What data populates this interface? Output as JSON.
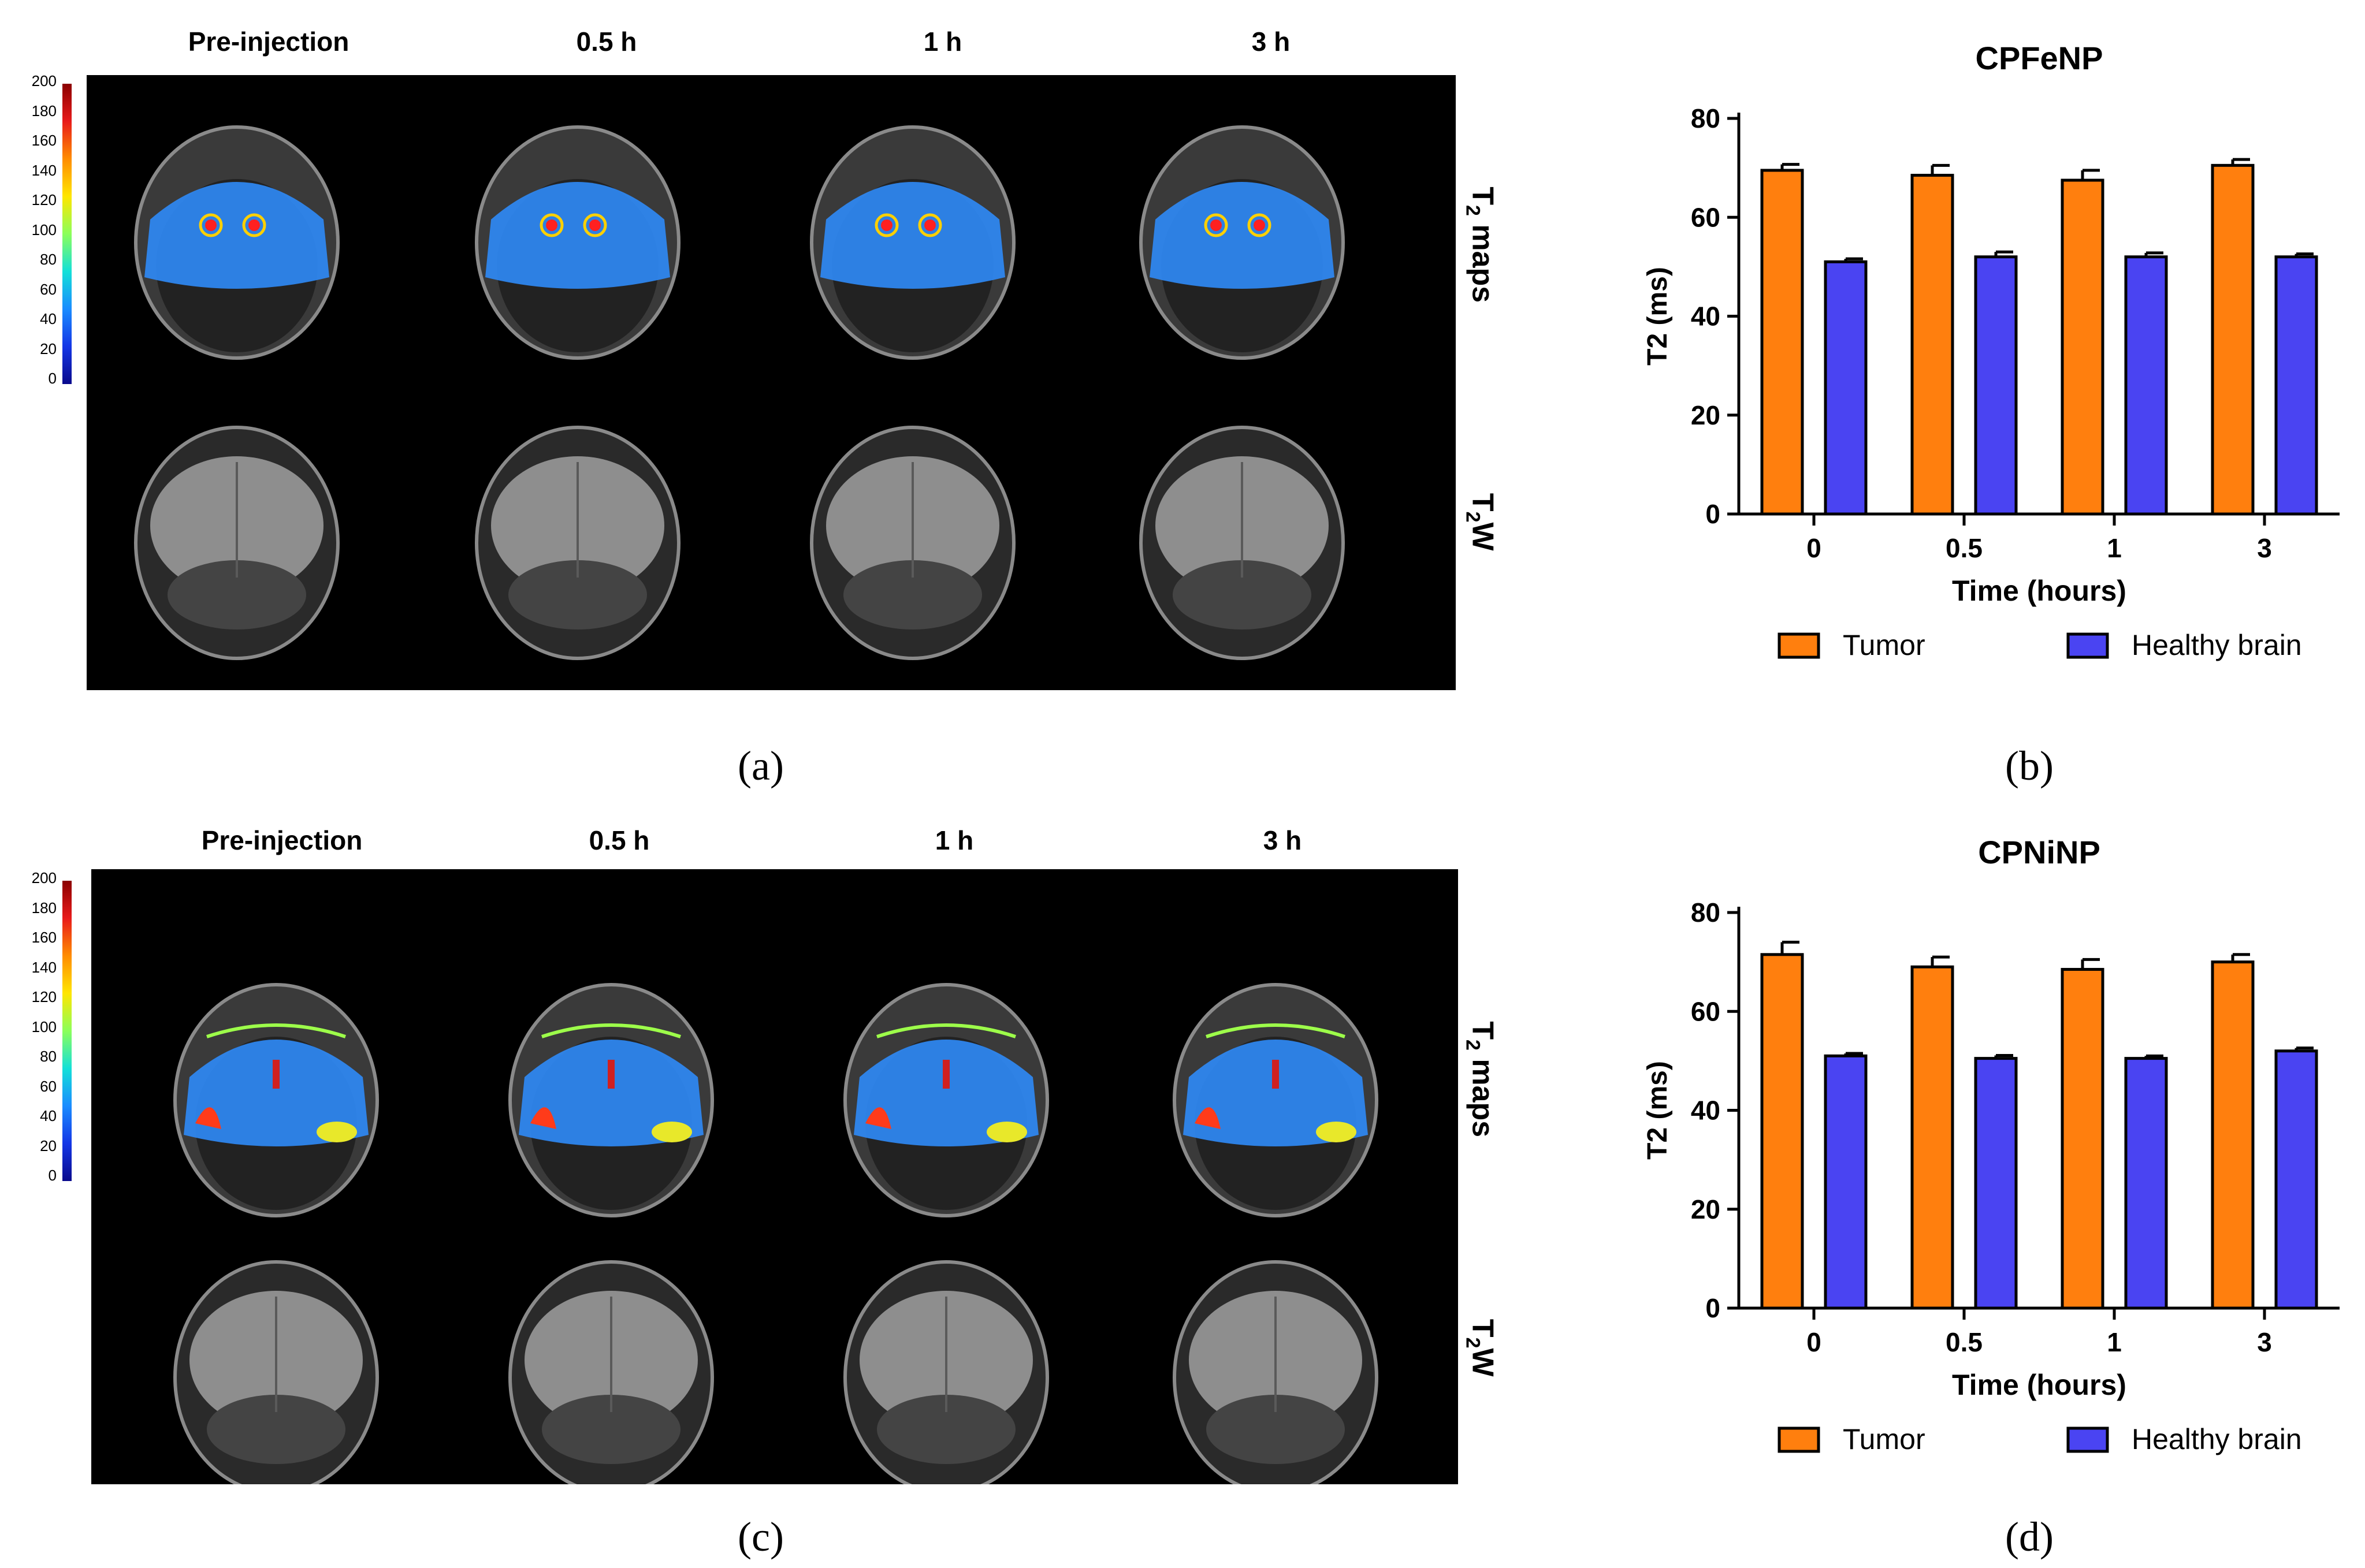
{
  "panels": {
    "a": {
      "label": "(a)",
      "column_titles": [
        "Pre-injection",
        "0.5 h",
        "1 h",
        "3 h"
      ],
      "row_label_t2": {
        "main": "T",
        "sub": "2",
        "rest": " maps"
      },
      "row_label_t2w": {
        "main": "T",
        "sub": "2",
        "rest": "W"
      },
      "scale_ticks": [
        "200",
        "180",
        "160",
        "140",
        "120",
        "100",
        "80",
        "60",
        "40",
        "20",
        "0"
      ]
    },
    "c": {
      "label": "(c)",
      "column_titles": [
        "Pre-injection",
        "0.5 h",
        "1 h",
        "3 h"
      ],
      "row_label_t2": {
        "main": "T",
        "sub": "2",
        "rest": " maps"
      },
      "row_label_t2w": {
        "main": "T",
        "sub": "2",
        "rest": "W"
      },
      "scale_ticks": [
        "200",
        "180",
        "160",
        "140",
        "120",
        "100",
        "80",
        "60",
        "40",
        "20",
        "0"
      ]
    },
    "b": {
      "label": "(b)"
    },
    "d": {
      "label": "(d)"
    }
  },
  "colors": {
    "tumor": "#ff7f0e",
    "healthy": "#4a44f2",
    "t2map": "#2a8cf0"
  },
  "chart_data": [
    {
      "type": "bar",
      "title": "CPFeNP",
      "categories": [
        "0",
        "0.5",
        "1",
        "3"
      ],
      "xlabel": "Time (hours)",
      "ylabel": "T2 (ms)",
      "ylim": [
        0,
        80
      ],
      "yticks": [
        "0",
        "20",
        "40",
        "60",
        "80"
      ],
      "series": [
        {
          "name": "Tumor",
          "values": [
            69.5,
            68.5,
            67.5,
            70.5
          ],
          "errors": [
            1.2,
            2.0,
            2.0,
            1.2
          ]
        },
        {
          "name": "Healthy brain",
          "values": [
            51,
            52,
            52,
            52
          ],
          "errors": [
            0.6,
            1.0,
            0.8,
            0.6
          ]
        }
      ],
      "legend": "bottom"
    },
    {
      "type": "bar",
      "title": "CPNiNP",
      "categories": [
        "0",
        "0.5",
        "1",
        "3"
      ],
      "xlabel": "Time (hours)",
      "ylabel": "T2 (ms)",
      "ylim": [
        0,
        80
      ],
      "yticks": [
        "0",
        "20",
        "40",
        "60",
        "80"
      ],
      "series": [
        {
          "name": "Tumor",
          "values": [
            71.5,
            69,
            68.5,
            70
          ],
          "errors": [
            2.5,
            2.0,
            2.0,
            1.5
          ]
        },
        {
          "name": "Healthy brain",
          "values": [
            51,
            50.5,
            50.5,
            52
          ],
          "errors": [
            0.5,
            0.6,
            0.5,
            0.6
          ]
        }
      ],
      "legend": "bottom"
    }
  ]
}
